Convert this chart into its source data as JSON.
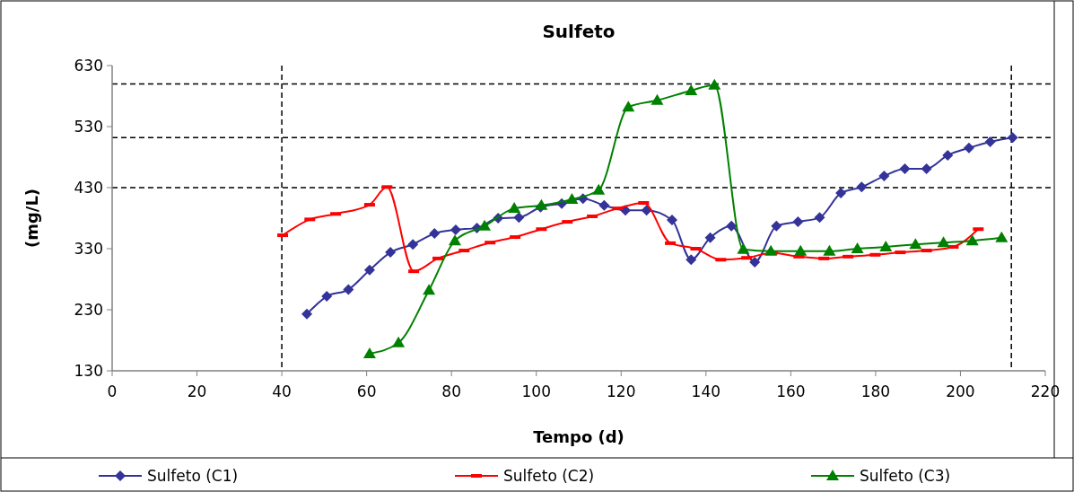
{
  "chart_data": {
    "type": "line",
    "title": "Sulfeto",
    "xlabel": "Tempo (d)",
    "ylabel": "(mg/L)",
    "xlim": [
      0,
      220
    ],
    "xticks": [
      0,
      20,
      40,
      60,
      80,
      100,
      120,
      140,
      160,
      180,
      200,
      220
    ],
    "ylim": [
      130,
      630
    ],
    "yticks": [
      130,
      230,
      330,
      430,
      530,
      630
    ],
    "grid": false,
    "legend": "bottom",
    "ref_lines": [
      {
        "axis": "y",
        "value": 600,
        "color": "#000000",
        "line_style": "dashed"
      },
      {
        "axis": "y",
        "value": 512,
        "color": "#000000",
        "line_style": "dashed"
      },
      {
        "axis": "y",
        "value": 430,
        "color": "#000000",
        "line_style": "dashed"
      },
      {
        "axis": "x",
        "value": 40,
        "color": "#000000",
        "line_style": "dashed"
      },
      {
        "axis": "x",
        "value": 212,
        "color": "#000000",
        "line_style": "dashed"
      }
    ],
    "series": [
      {
        "name": "Sulfeto (C1)",
        "color": "#333399",
        "marker": "diamond",
        "x": [
          45.9,
          50.6,
          55.7,
          60.7,
          65.6,
          70.9,
          76,
          81,
          86,
          91,
          95.9,
          101,
          106,
          111,
          116,
          121,
          126,
          132,
          136.5,
          141,
          146,
          151.5,
          156.6,
          161.7,
          166.8,
          171.8,
          176.7,
          182,
          186.9,
          192,
          197,
          202,
          207,
          212.3
        ],
        "values": [
          223,
          252,
          263,
          295,
          324,
          337,
          355,
          361,
          364,
          380,
          381,
          398,
          404,
          412,
          401,
          393,
          393,
          377,
          312,
          348,
          367,
          308,
          367,
          374,
          381,
          421,
          431,
          449,
          461,
          461,
          483,
          495,
          505,
          512
        ]
      },
      {
        "name": "Sulfeto (C2)",
        "color": "#ff0000",
        "marker": "square",
        "x": [
          40.2,
          46.6,
          52.7,
          60.7,
          64.8,
          71.1,
          76.8,
          83,
          89.1,
          95,
          101.2,
          107.3,
          113.2,
          119.2,
          125.3,
          131.6,
          137.6,
          143.5,
          149.6,
          155.6,
          161.9,
          167.8,
          173.5,
          179.9,
          185.8,
          192,
          198.3,
          204.2
        ],
        "values": [
          352,
          378,
          387,
          402,
          431,
          293,
          314,
          327,
          340,
          349,
          362,
          374,
          383,
          396,
          405,
          339,
          330,
          312,
          315,
          323,
          317,
          314,
          317,
          320,
          324,
          327,
          333,
          362
        ]
      },
      {
        "name": "Sulfeto (C3)",
        "color": "#008000",
        "marker": "triangle",
        "x": [
          60.7,
          67.5,
          74.7,
          80.8,
          87.8,
          94.8,
          101.2,
          108.4,
          114.7,
          121.7,
          128.5,
          136.5,
          142,
          148.8,
          155.3,
          162.3,
          169.1,
          175.7,
          182.4,
          189.4,
          196,
          202.8,
          209.7
        ],
        "values": [
          158,
          176,
          262,
          343,
          367,
          396,
          401,
          411,
          426,
          562,
          573,
          589,
          598,
          329,
          326,
          326,
          326,
          330,
          333,
          337,
          340,
          343,
          348
        ]
      }
    ]
  }
}
